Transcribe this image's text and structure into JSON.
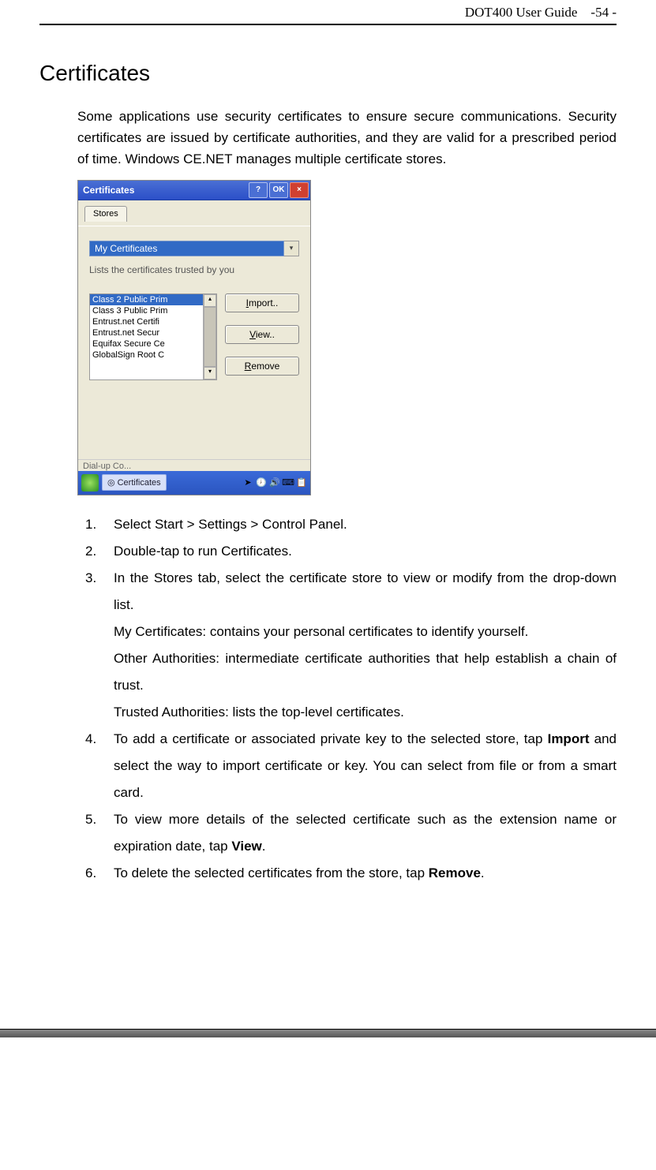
{
  "header": {
    "doc_title": "DOT400 User Guide",
    "page_num": "-54 -"
  },
  "section_title": "Certificates",
  "intro": "Some applications use security certificates to ensure secure communications. Security certificates are issued by certificate authorities, and they are valid for a prescribed period of time. Windows CE.NET manages multiple certificate stores.",
  "dialog": {
    "title": "Certificates",
    "help_btn": "?",
    "ok_btn": "OK",
    "close_btn": "×",
    "tab_label": "Stores",
    "dropdown_selected": "My Certificates",
    "dropdown_arrow": "▾",
    "desc": "Lists the certificates trusted by you",
    "list": [
      "Class 2 Public Prim",
      "Class 3 Public Prim",
      "Entrust.net Certifi",
      "Entrust.net Secur",
      "Equifax Secure Ce",
      "GlobalSign Root C"
    ],
    "scroll_up": "▴",
    "scroll_down": "▾",
    "btn_import": "Import..",
    "btn_view": "View..",
    "btn_remove": "Remove",
    "taskbar_peek": "Dial-up Co...",
    "task_open_label": "Certificates",
    "tray": {
      "i1": "➤",
      "i2": "🕖",
      "i3": "🔊",
      "i4": "⌨",
      "i5": "📋"
    }
  },
  "steps": {
    "s1": "Select Start > Settings > Control Panel.",
    "s2": "Double-tap to run Certificates.",
    "s3": "In the Stores tab, select the certificate store to view or modify from the drop-down list.",
    "s3a": "My Certificates: contains your personal certificates to identify yourself.",
    "s3b": "Other Authorities: intermediate certificate authorities that help establish a chain of trust.",
    "s3c": "Trusted Authorities: lists the top-level certificates.",
    "s4a": "To add a certificate or associated private key to the selected store, tap ",
    "s4b": "Import",
    "s4c": " and select the way to import certificate or key. You can select from file or from a smart card.",
    "s5a": "To view more details of the selected certificate such as the extension name or expiration date, tap ",
    "s5b": "View",
    "s5c": ".",
    "s6a": "To delete the selected certificates from the store, tap ",
    "s6b": "Remove",
    "s6c": "."
  }
}
